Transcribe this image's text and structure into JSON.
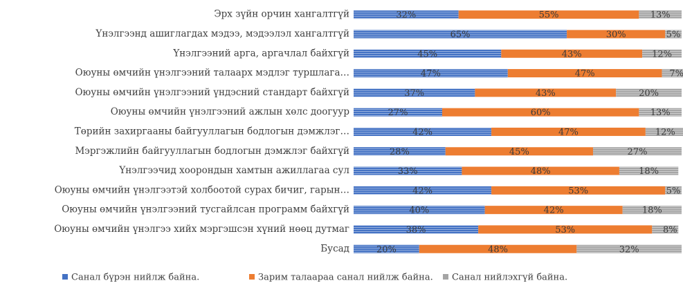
{
  "chart_data": {
    "type": "bar",
    "orientation": "horizontal",
    "stacked": true,
    "categories": [
      "Эрх зүйн орчин хангалтгүй",
      "Үнэлгээнд ашиглагдах мэдээ, мэдээлэл хангалтгүй",
      "Үнэлгээний арга, аргачлал байхгүй",
      "Оюуны өмчийн үнэлгээний талаарх мэдлэг туршлага…",
      "Оюуны өмчийн үнэлгээний үндэсний стандарт байхгүй",
      "Оюуны өмчийн үнэлгээний ажлын хөлс доогуур",
      "Төрийн захиргааны байгууллагын бодлогын дэмжлэг…",
      "Мэргэжлийн байгууллагын бодлогын дэмжлэг байхгүй",
      "Үнэлгээчид хоорондын хамтын ажиллагаа сул",
      "Оюуны өмчийн үнэлгээтэй холбоотой сурах бичиг, гарын…",
      "Оюуны өмчийн үнэлгээний тусгайлсан программ байхгүй",
      "Оюуны өмчийн үнэлгээ хийх мэргэшсэн хүний нөөц дутмаг",
      "Бусад"
    ],
    "series": [
      {
        "name": "Санал бүрэн нийлж байна.",
        "color": "#4472c4",
        "values": [
          32,
          65,
          45,
          47,
          37,
          27,
          42,
          28,
          33,
          42,
          40,
          38,
          20
        ],
        "value_labels": [
          "32%",
          "65%",
          "45%",
          "47%",
          "37%",
          "27%",
          "42%",
          "28%",
          "33%",
          "42%",
          "40%",
          "38%",
          "20%"
        ]
      },
      {
        "name": "Зарим талаараа санал нийлж байна.",
        "color": "#ed7d31",
        "values": [
          55,
          30,
          43,
          47,
          43,
          60,
          47,
          45,
          48,
          53,
          42,
          53,
          48
        ],
        "value_labels": [
          "55%",
          "30%",
          "43%",
          "47%",
          "43%",
          "60%",
          "47%",
          "45%",
          "48%",
          "53%",
          "42%",
          "53%",
          "48%"
        ]
      },
      {
        "name": "Санал нийлэхгүй байна.",
        "color": "#a5a5a5",
        "values": [
          13,
          5,
          12,
          7,
          20,
          13,
          12,
          27,
          18,
          5,
          18,
          8,
          32
        ],
        "value_labels": [
          "13%",
          "5%",
          "12%",
          "7%",
          "20%",
          "13%",
          "12%",
          "27%",
          "18%",
          "5%",
          "18%",
          "8%",
          "32%"
        ]
      }
    ],
    "xlim": [
      0,
      100
    ],
    "legend": "bottom"
  }
}
